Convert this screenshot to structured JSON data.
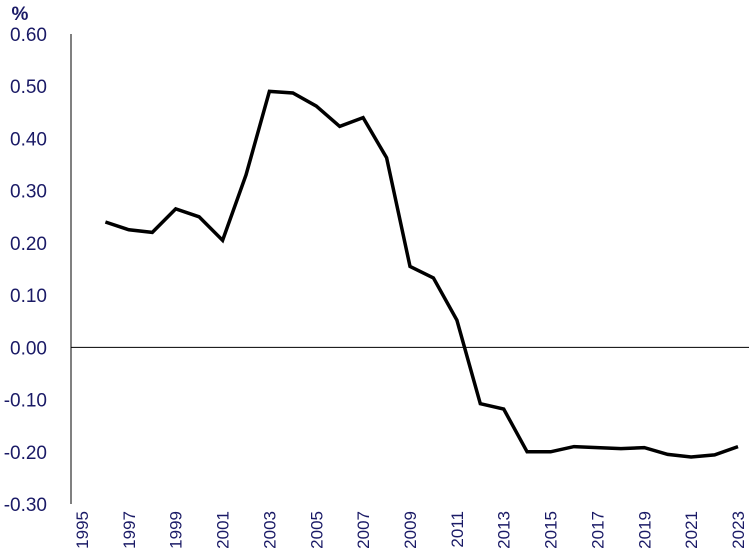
{
  "chart_data": {
    "type": "line",
    "title": "",
    "xlabel": "",
    "ylabel": "%",
    "ylim": [
      -0.3,
      0.6
    ],
    "xlim": [
      1995,
      2023
    ],
    "grid": false,
    "y_ticks": [
      "0.60",
      "0.50",
      "0.40",
      "0.30",
      "0.20",
      "0.10",
      "0.00",
      "-0.10",
      "-0.20",
      "-0.30"
    ],
    "x_ticks": [
      "1995",
      "1997",
      "1999",
      "2001",
      "2003",
      "2005",
      "2007",
      "2009",
      "2011",
      "2013",
      "2015",
      "2017",
      "2019",
      "2021",
      "2023"
    ],
    "series": [
      {
        "color": "#000000",
        "x": [
          1996,
          1997,
          1998,
          1999,
          2000,
          2001,
          2002,
          2003,
          2004,
          2005,
          2006,
          2007,
          2008,
          2009,
          2010,
          2011,
          2012,
          2013,
          2014,
          2015,
          2016,
          2017,
          2018,
          2019,
          2020,
          2021,
          2022,
          2023
        ],
        "values": [
          0.24,
          0.225,
          0.22,
          0.265,
          0.25,
          0.205,
          0.33,
          0.49,
          0.487,
          0.462,
          0.423,
          0.44,
          0.363,
          0.155,
          0.133,
          0.052,
          -0.108,
          -0.118,
          -0.2,
          -0.2,
          -0.19,
          -0.192,
          -0.194,
          -0.192,
          -0.205,
          -0.21,
          -0.206,
          -0.19
        ]
      }
    ]
  }
}
